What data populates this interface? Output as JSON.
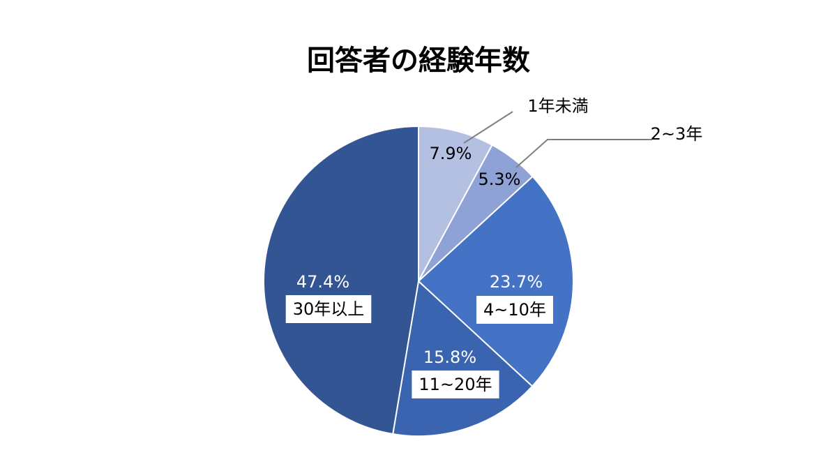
{
  "chart_data": {
    "type": "pie",
    "title": "回答者の経験年数",
    "slices": [
      {
        "label": "1年未満",
        "value": 7.9,
        "pct_text": "7.9%",
        "color": "#b4c0e1"
      },
      {
        "label": "2~3年",
        "value": 5.3,
        "pct_text": "5.3%",
        "color": "#8ea2d6"
      },
      {
        "label": "4~10年",
        "value": 23.7,
        "pct_text": "23.7%",
        "color": "#4472c4"
      },
      {
        "label": "11~20年",
        "value": 15.8,
        "pct_text": "15.8%",
        "color": "#3a64b0"
      },
      {
        "label": "30年以上",
        "value": 47.4,
        "pct_text": "47.4%",
        "color": "#335593"
      }
    ],
    "start_angle": "12 o'clock",
    "direction": "clockwise",
    "legend": "none"
  }
}
